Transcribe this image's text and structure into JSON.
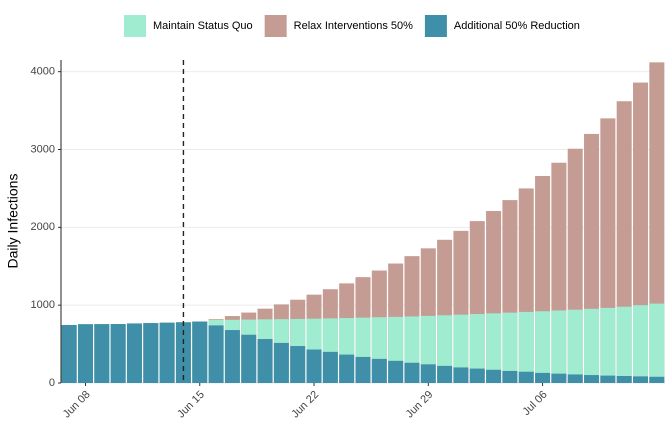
{
  "chart_data": {
    "type": "bar",
    "overlay": true,
    "ylabel": "Daily Infections",
    "categories": [
      null,
      "Jun 08",
      null,
      null,
      null,
      null,
      null,
      null,
      "Jun 15",
      null,
      null,
      null,
      null,
      null,
      null,
      "Jun 22",
      null,
      null,
      null,
      null,
      null,
      null,
      "Jun 29",
      null,
      null,
      null,
      null,
      null,
      null,
      "Jul 06",
      null,
      null,
      null,
      null,
      null,
      null,
      null
    ],
    "series": [
      {
        "name": "Relax Interventions 50%",
        "color": "#c49c94",
        "values": [
          745,
          755,
          757,
          758,
          765,
          770,
          775,
          780,
          790,
          820,
          860,
          905,
          955,
          1010,
          1070,
          1135,
          1205,
          1280,
          1360,
          1445,
          1535,
          1630,
          1730,
          1840,
          1955,
          2080,
          2210,
          2350,
          2500,
          2660,
          2830,
          3010,
          3200,
          3400,
          3620,
          3860,
          4120
        ]
      },
      {
        "name": "Maintain Status Quo",
        "color": "#a0ecd0",
        "values": [
          745,
          755,
          757,
          758,
          765,
          770,
          775,
          780,
          790,
          810,
          812,
          815,
          818,
          820,
          823,
          826,
          830,
          835,
          840,
          845,
          850,
          855,
          862,
          870,
          878,
          886,
          895,
          904,
          913,
          922,
          932,
          942,
          953,
          965,
          980,
          1000,
          1020
        ]
      },
      {
        "name": "Additional 50% Reduction",
        "color": "#3f8fa8",
        "values": [
          745,
          755,
          757,
          758,
          765,
          770,
          775,
          780,
          790,
          740,
          680,
          620,
          565,
          515,
          475,
          430,
          400,
          365,
          335,
          310,
          285,
          260,
          240,
          220,
          200,
          185,
          170,
          155,
          145,
          130,
          120,
          110,
          102,
          95,
          90,
          85,
          80
        ]
      }
    ],
    "legend_order": [
      1,
      0,
      2
    ],
    "ylim": [
      0,
      4150
    ],
    "yticks": [
      0,
      1000,
      2000,
      3000,
      4000
    ],
    "grid": true,
    "vline_x": 7
  }
}
